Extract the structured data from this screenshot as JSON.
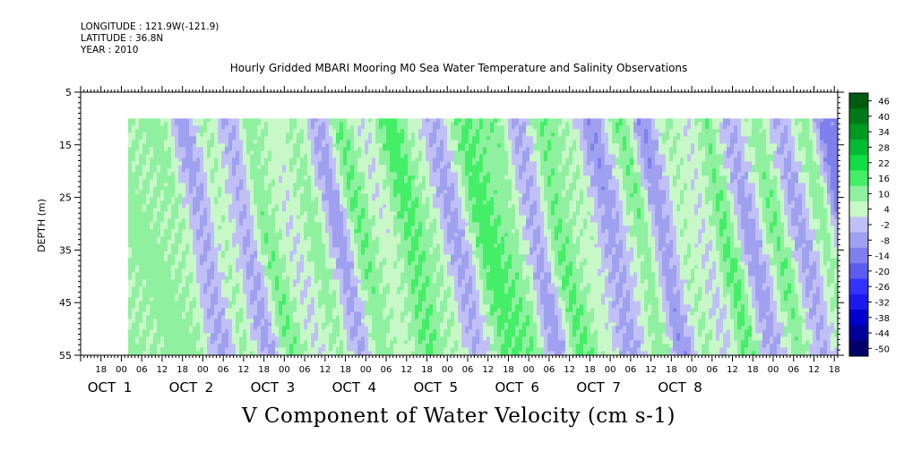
{
  "header": {
    "longitude": "LONGITUDE : 121.9W(-121.9)",
    "latitude": "LATITUDE : 36.8N",
    "year": "YEAR : 2010"
  },
  "chart_data": {
    "type": "heatmap",
    "title": "Hourly Gridded MBARI Mooring M0 Sea Water Temperature and Salinity Observations",
    "variable_label": "V Component of Water Velocity (cm s-1)",
    "ylabel": "DEPTH (m)",
    "ylim": [
      5,
      55
    ],
    "y_inverted": true,
    "y_ticks": [
      5,
      15,
      25,
      35,
      45,
      55
    ],
    "data_depth_range": [
      10,
      55
    ],
    "x_range_hours": [
      -12,
      211
    ],
    "data_time_range_hours": [
      2,
      211
    ],
    "x_hour_ticks": [
      "18",
      "00",
      "06",
      "12",
      "18",
      "00",
      "06",
      "12",
      "18",
      "00",
      "06",
      "12",
      "18",
      "00",
      "06",
      "12",
      "18",
      "00",
      "06",
      "12",
      "18",
      "00",
      "06",
      "12",
      "18",
      "00",
      "06",
      "12",
      "18",
      "00",
      "06",
      "12",
      "18",
      "00",
      "06",
      "12",
      "18"
    ],
    "x_day_labels": [
      {
        "month": "OCT",
        "day": "1"
      },
      {
        "month": "OCT",
        "day": "2"
      },
      {
        "month": "OCT",
        "day": "3"
      },
      {
        "month": "OCT",
        "day": "4"
      },
      {
        "month": "OCT",
        "day": "5"
      },
      {
        "month": "OCT",
        "day": "6"
      },
      {
        "month": "OCT",
        "day": "7"
      },
      {
        "month": "OCT",
        "day": "8"
      }
    ],
    "colorbar": {
      "levels": [
        -50,
        -44,
        -38,
        -32,
        -26,
        -20,
        -14,
        -8,
        -2,
        4,
        10,
        16,
        22,
        28,
        34,
        40,
        46
      ],
      "tick_labels": [
        "46",
        "40",
        "34",
        "28",
        "22",
        "16",
        "10",
        "4",
        "-2",
        "-8",
        "-14",
        "-20",
        "-26",
        "-32",
        "-38",
        "-44",
        "-50"
      ],
      "colors_low_to_high": [
        "#000066",
        "#000099",
        "#0000cc",
        "#1a1aee",
        "#3333ff",
        "#5c5cf0",
        "#7f7fee",
        "#a0a0f0",
        "#c0c0f6",
        "#c8f8c8",
        "#8ff0a0",
        "#44ee66",
        "#11dd44",
        "#00bb33",
        "#009922",
        "#007a18",
        "#005a10"
      ]
    },
    "hovmoller_bands": [
      {
        "t": 10,
        "v": 12
      },
      {
        "t": 18,
        "v": -4
      },
      {
        "t": 24,
        "v": 10
      },
      {
        "t": 31,
        "v": -3
      },
      {
        "t": 37,
        "v": 14
      },
      {
        "t": 45,
        "v": 5
      },
      {
        "t": 51,
        "v": 12
      },
      {
        "t": 58,
        "v": -4
      },
      {
        "t": 64,
        "v": 15
      },
      {
        "t": 71,
        "v": 6
      },
      {
        "t": 79,
        "v": 18
      },
      {
        "t": 85,
        "v": 10
      },
      {
        "t": 92,
        "v": -3
      },
      {
        "t": 101,
        "v": 18
      },
      {
        "t": 109,
        "v": 14
      },
      {
        "t": 116,
        "v": -4
      },
      {
        "t": 123,
        "v": 16
      },
      {
        "t": 131,
        "v": 8
      },
      {
        "t": 138,
        "v": -5
      },
      {
        "t": 147,
        "v": 14
      },
      {
        "t": 153,
        "v": -6
      },
      {
        "t": 160,
        "v": 10
      },
      {
        "t": 166,
        "v": 4
      },
      {
        "t": 172,
        "v": 16
      },
      {
        "t": 179,
        "v": -4
      },
      {
        "t": 187,
        "v": 14
      },
      {
        "t": 194,
        "v": -3
      },
      {
        "t": 201,
        "v": 12
      },
      {
        "t": 207,
        "v": -10
      }
    ]
  }
}
